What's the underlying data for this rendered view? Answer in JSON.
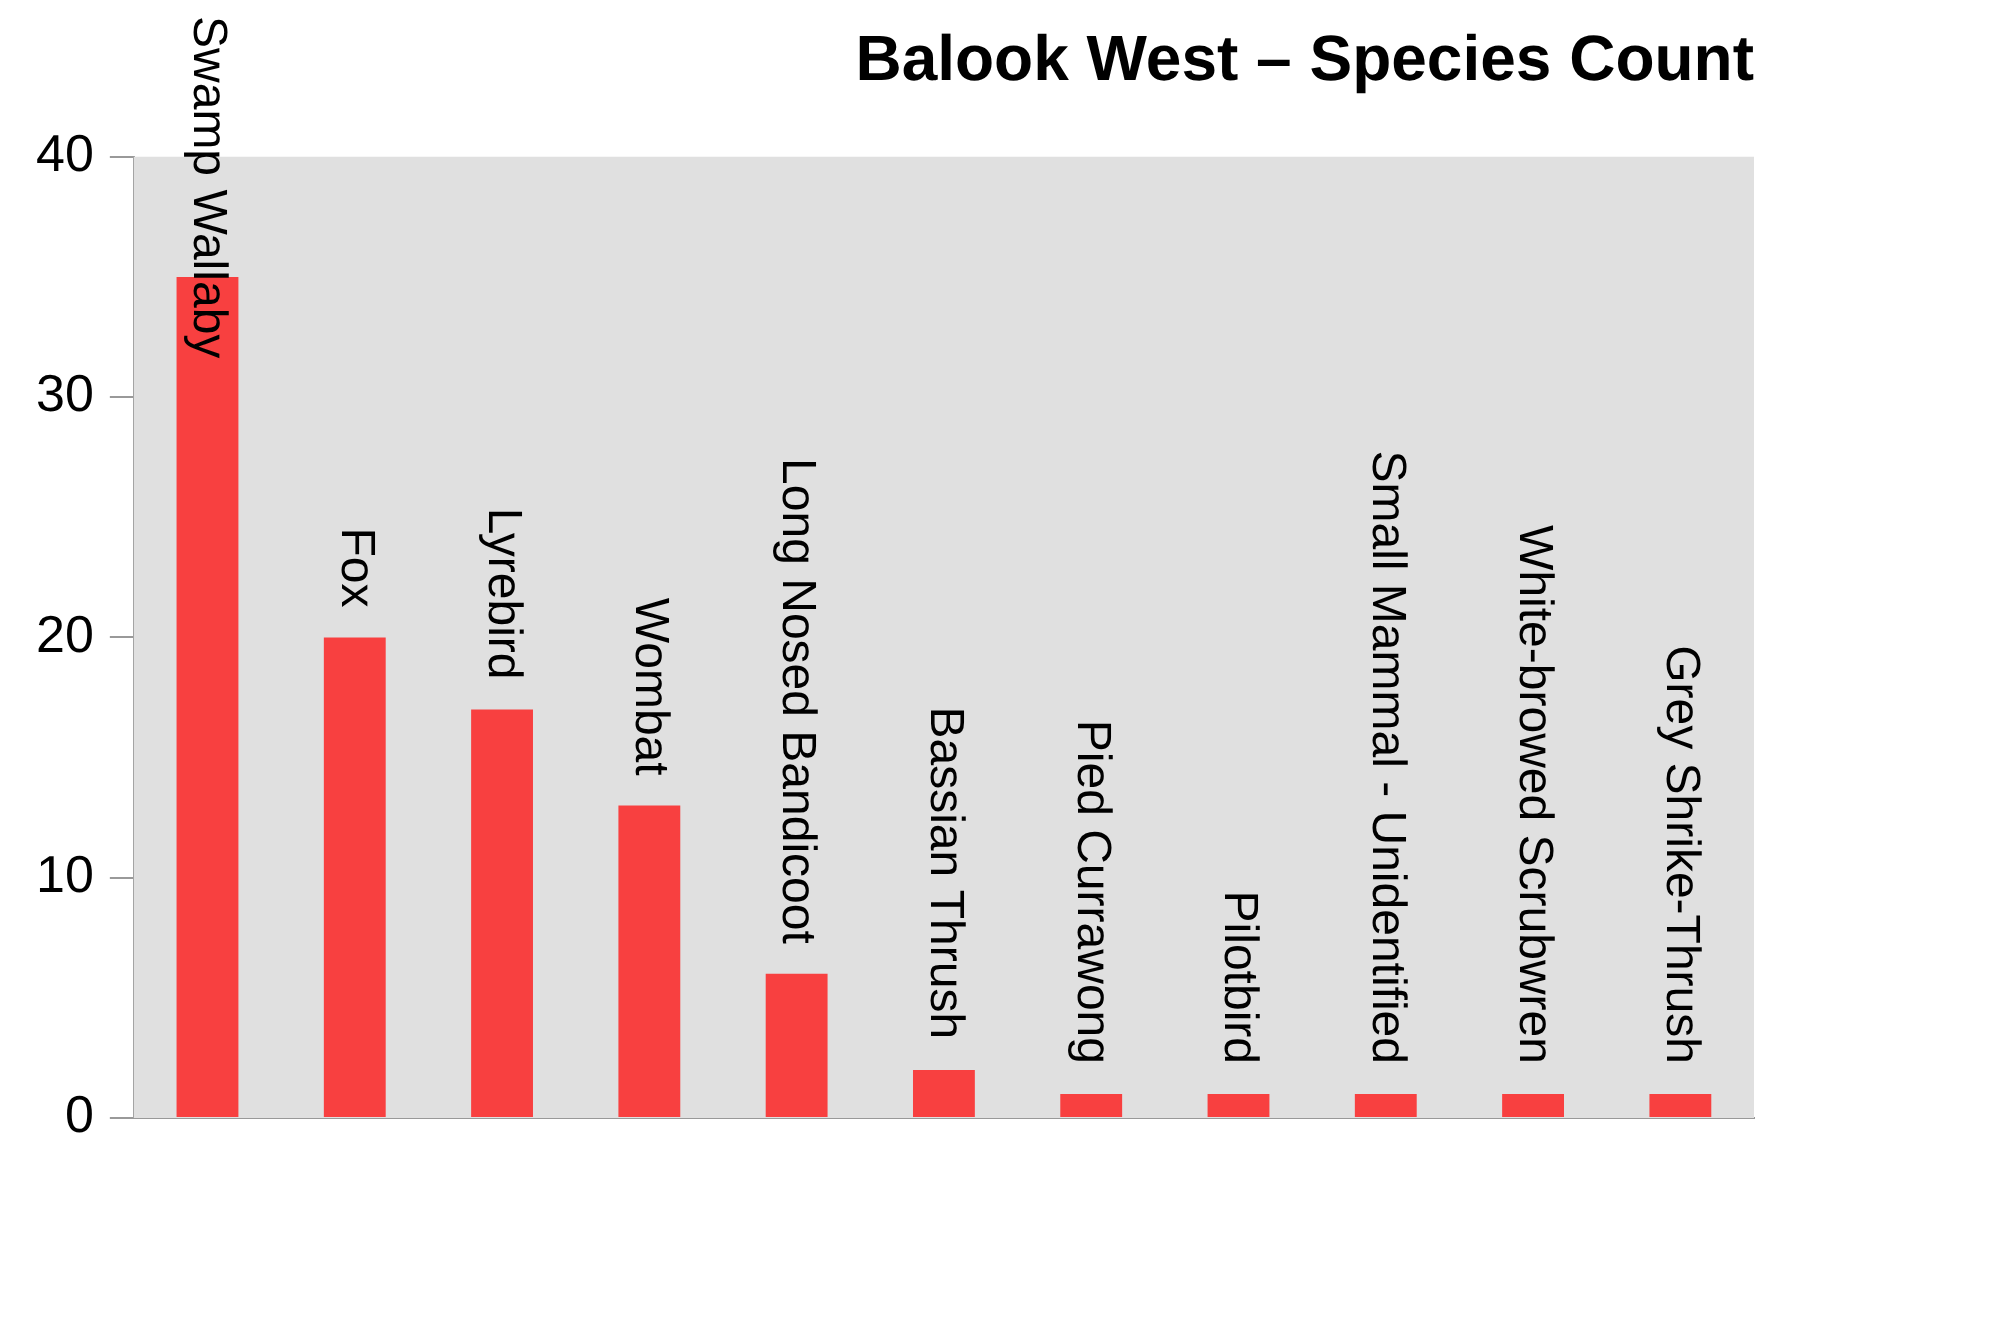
{
  "chart_data": {
    "type": "bar",
    "title": "Balook West – Species Count",
    "categories": [
      "Swamp Wallaby",
      "Fox",
      "Lyrebird",
      "Wombat",
      "Long Nosed Bandicoot",
      "Bassian Thrush",
      "Pied Currawong",
      "Pilotbird",
      "Small Mammal - Unidentified",
      "White-browed Scrubwren",
      "Grey Shrike-Thrush"
    ],
    "values": [
      35,
      20,
      17,
      13,
      6,
      2,
      1,
      1,
      1,
      1,
      1
    ],
    "color": "#f84040",
    "ylim": [
      0,
      40
    ],
    "yticks": [
      0,
      10,
      20,
      30,
      40
    ],
    "grid": false,
    "legend": false
  }
}
